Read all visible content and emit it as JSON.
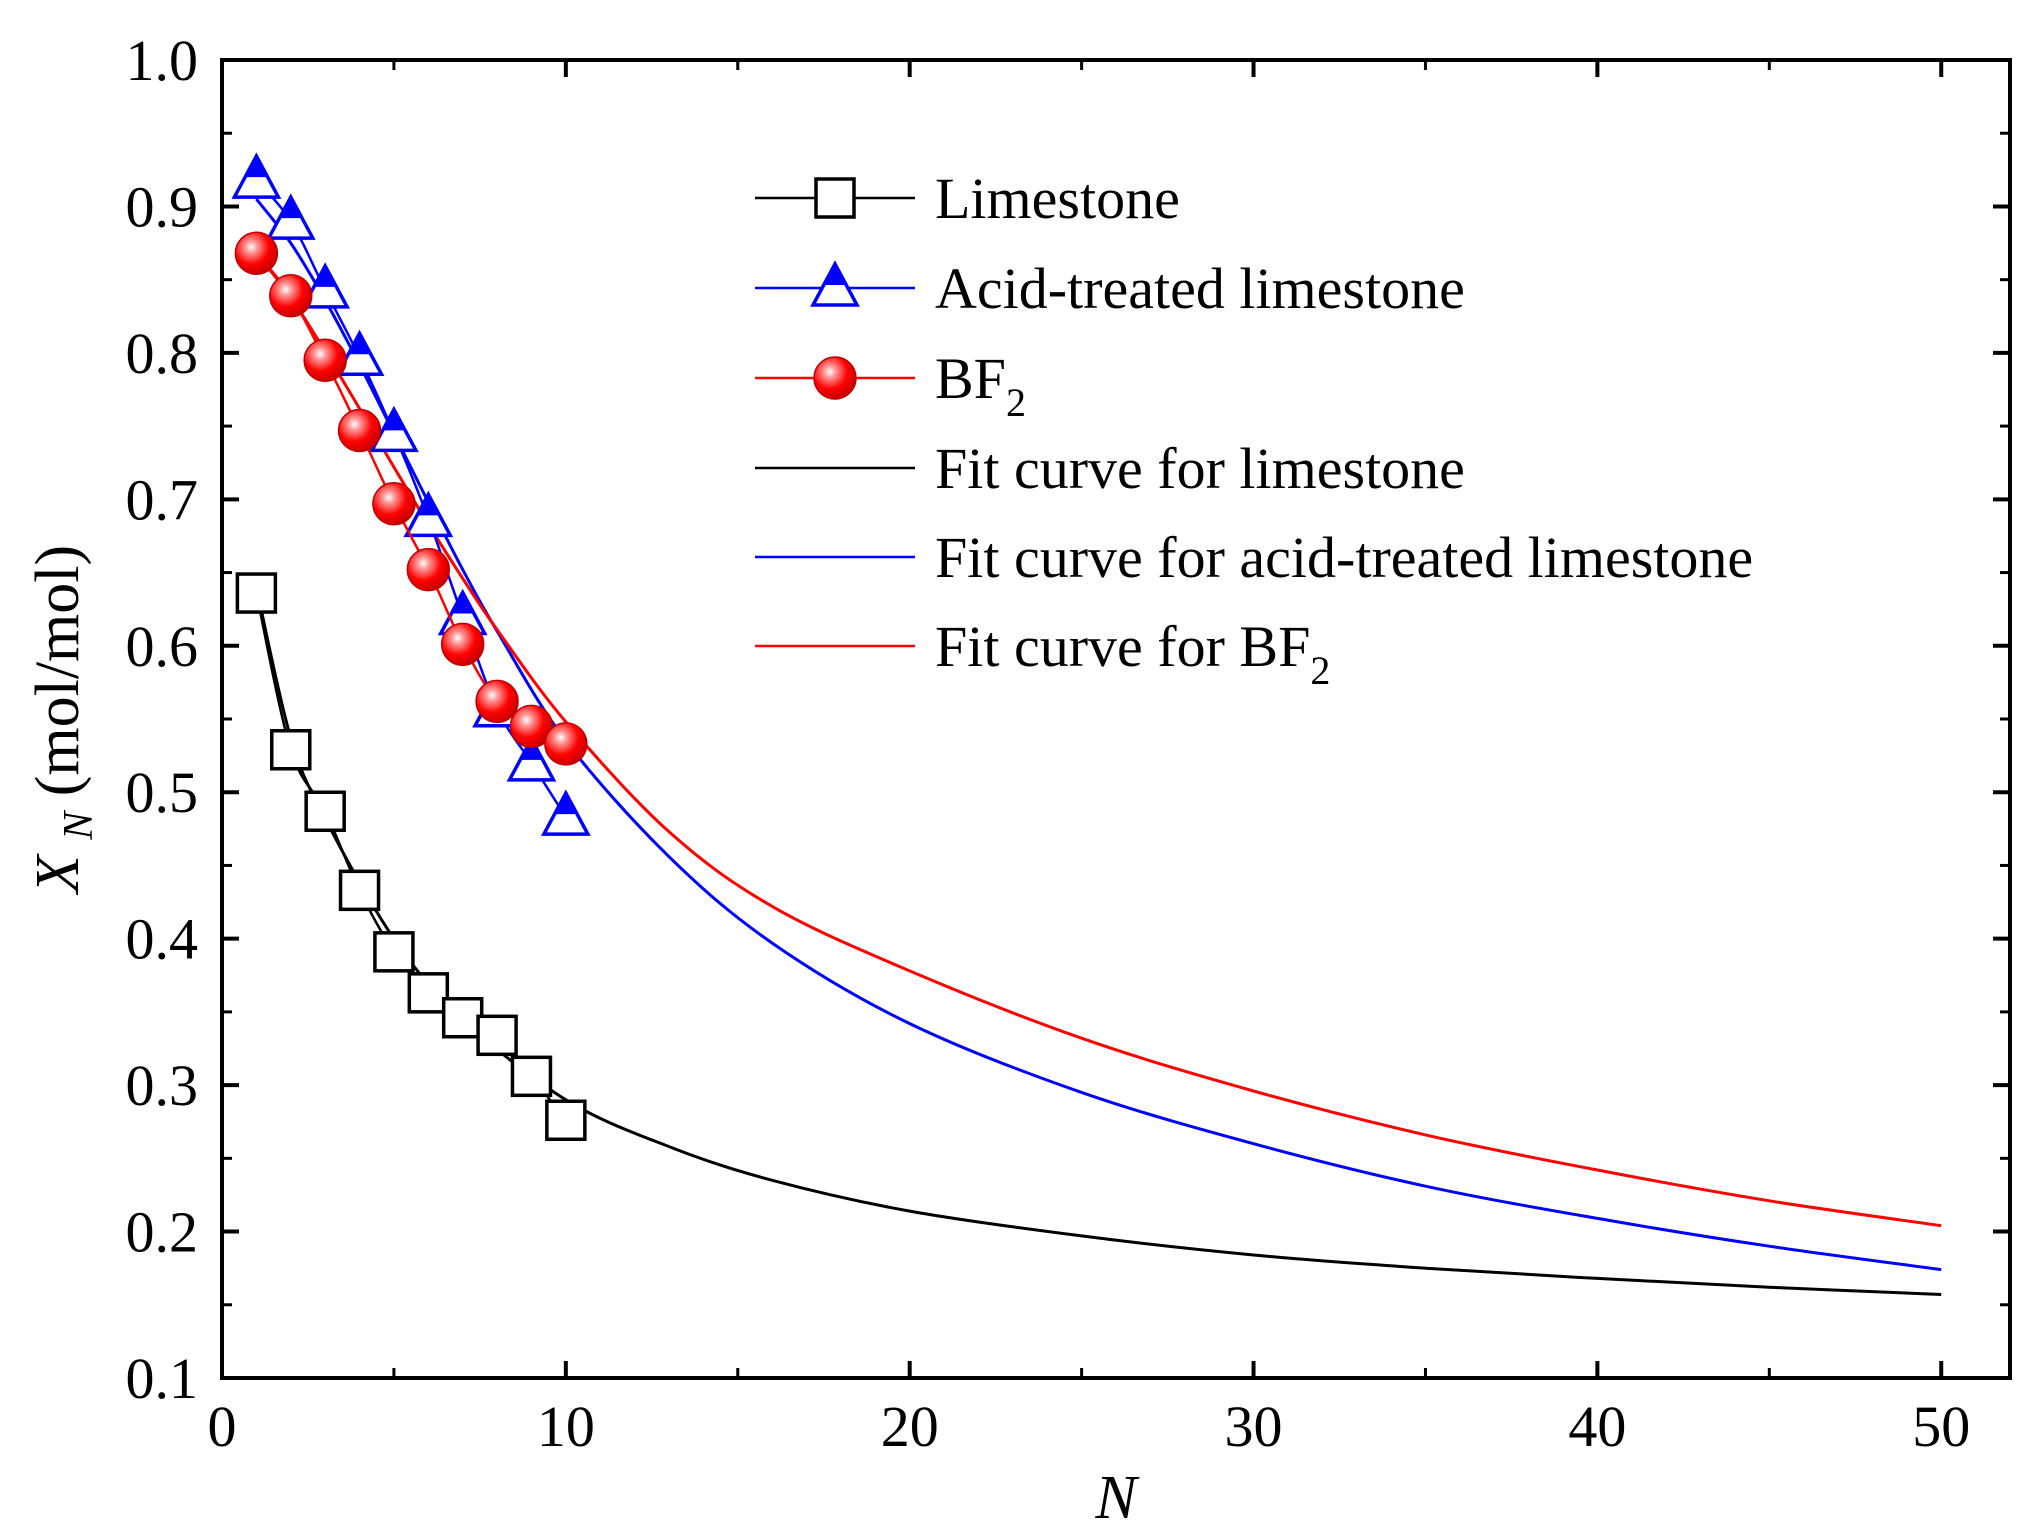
{
  "chart_data": {
    "type": "scatter",
    "title": "",
    "xlabel": "N",
    "ylabel": {
      "symbol": "X",
      "subscript": "N",
      "unit": " (mol/mol)"
    },
    "xlim": [
      0,
      52
    ],
    "ylim": [
      0.1,
      1.0
    ],
    "xticks": [
      0,
      10,
      20,
      30,
      40,
      50
    ],
    "xtick_labels": [
      "0",
      "10",
      "20",
      "30",
      "40",
      "50"
    ],
    "yticks": [
      0.1,
      0.2,
      0.3,
      0.4,
      0.5,
      0.6,
      0.7,
      0.8,
      0.9,
      1.0
    ],
    "ytick_labels": [
      "0.1",
      "0.2",
      "0.3",
      "0.4",
      "0.5",
      "0.6",
      "0.7",
      "0.8",
      "0.9",
      "1.0"
    ],
    "grid": false,
    "legend_position": "top-right",
    "series": [
      {
        "name": "Limestone",
        "label": {
          "text": "Limestone",
          "sub": ""
        },
        "kind": "markers+line",
        "marker": "square-open",
        "color": "#000000",
        "x": [
          1,
          2,
          3,
          4,
          5,
          6,
          7,
          8,
          9,
          10
        ],
        "y": [
          0.636,
          0.529,
          0.487,
          0.433,
          0.391,
          0.363,
          0.346,
          0.334,
          0.306,
          0.276
        ]
      },
      {
        "name": "Acid-treated limestone",
        "label": {
          "text": "Acid-treated limestone",
          "sub": ""
        },
        "kind": "markers+line",
        "marker": "triangle-half",
        "color": "#0000ff",
        "x": [
          1,
          2,
          3,
          4,
          5,
          6,
          7,
          8,
          9,
          10
        ],
        "y": [
          0.918,
          0.89,
          0.843,
          0.797,
          0.745,
          0.687,
          0.62,
          0.557,
          0.52,
          0.483
        ]
      },
      {
        "name": "BF2",
        "label": {
          "text": "BF",
          "sub": "2"
        },
        "kind": "markers+line",
        "marker": "sphere",
        "color": "#ff0000",
        "x": [
          1,
          2,
          3,
          4,
          5,
          6,
          7,
          8,
          9,
          10
        ],
        "y": [
          0.868,
          0.839,
          0.795,
          0.747,
          0.697,
          0.652,
          0.601,
          0.562,
          0.545,
          0.533
        ]
      },
      {
        "name": "Fit curve for limestone",
        "label": {
          "text": "Fit curve for limestone",
          "sub": ""
        },
        "kind": "line",
        "color": "#000000",
        "x": [
          1,
          2,
          3,
          5,
          7,
          10,
          13,
          16,
          20,
          25,
          30,
          35,
          40,
          45,
          50
        ],
        "y": [
          0.64,
          0.537,
          0.482,
          0.4,
          0.345,
          0.29,
          0.258,
          0.235,
          0.214,
          0.197,
          0.184,
          0.175,
          0.168,
          0.162,
          0.157
        ]
      },
      {
        "name": "Fit curve for acid-treated limestone",
        "label": {
          "text": "Fit curve for acid-treated limestone",
          "sub": ""
        },
        "kind": "line",
        "color": "#0000ff",
        "x": [
          1,
          2,
          3,
          4,
          5,
          6,
          7,
          8,
          10,
          13,
          16,
          20,
          25,
          30,
          35,
          40,
          45,
          50
        ],
        "y": [
          0.905,
          0.875,
          0.836,
          0.792,
          0.745,
          0.698,
          0.652,
          0.61,
          0.535,
          0.456,
          0.397,
          0.342,
          0.295,
          0.26,
          0.231,
          0.209,
          0.19,
          0.174
        ]
      },
      {
        "name": "Fit curve for BF2",
        "label": {
          "text": "Fit curve for BF",
          "sub": "2"
        },
        "kind": "line",
        "color": "#ff0000",
        "x": [
          1,
          2,
          3,
          4,
          5,
          6,
          7,
          8,
          10,
          13,
          16,
          20,
          25,
          30,
          35,
          40,
          45,
          50
        ],
        "y": [
          0.868,
          0.838,
          0.801,
          0.762,
          0.722,
          0.683,
          0.646,
          0.611,
          0.548,
          0.473,
          0.422,
          0.378,
          0.332,
          0.296,
          0.266,
          0.242,
          0.221,
          0.204
        ]
      }
    ]
  }
}
